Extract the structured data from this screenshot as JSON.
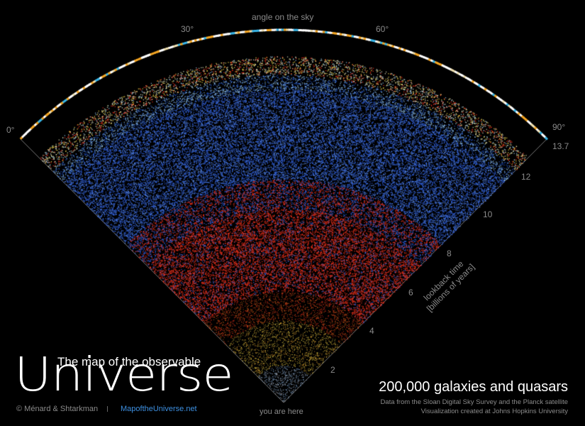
{
  "title": {
    "prefix": "The map of the observable",
    "main": "Universe"
  },
  "credit": {
    "authors": "© Ménard & Shtarkman",
    "website": "MapoftheUniverse.net"
  },
  "summary": {
    "headline": "200,000 galaxies and quasars",
    "source_line": "Data from the Sloan Digital Sky Survey and the Planck satellite",
    "visualization_line": "Visualization created at Johns Hopkins University"
  },
  "angle_axis": {
    "title": "angle on the sky",
    "ticks": [
      "0°",
      "30°",
      "60°",
      "90°"
    ]
  },
  "time_axis": {
    "title_line1": "lookback time",
    "title_line2": "[billions of years]",
    "ticks": [
      "2",
      "4",
      "6",
      "8",
      "10",
      "12",
      "13.7"
    ]
  },
  "observer_label": "you are here",
  "colors": {
    "background": "#000000",
    "near_galaxies": "#f2d64a",
    "mid_galaxies": "#e8301c",
    "far_quasars": "#2f5ed8",
    "cmb_warm": "#f5a623",
    "cmb_cool": "#38b6e8",
    "axis_text": "#8a8a8a",
    "link": "#3d8fe0"
  }
}
